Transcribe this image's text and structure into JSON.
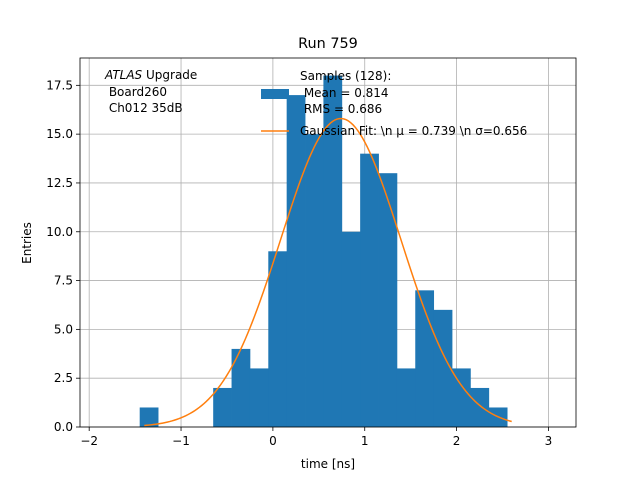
{
  "chart_data": {
    "type": "bar",
    "title": "Run 759",
    "xlabel": "time [ns]",
    "ylabel": "Entries",
    "xlim": [
      -2.1,
      3.3
    ],
    "ylim": [
      0,
      18.9
    ],
    "grid": true,
    "x_ticks": [
      -2,
      -1,
      0,
      1,
      2,
      3
    ],
    "y_ticks": [
      0.0,
      2.5,
      5.0,
      7.5,
      10.0,
      12.5,
      15.0,
      17.5
    ],
    "y_tick_labels": [
      "0.0",
      "2.5",
      "5.0",
      "7.5",
      "10.0",
      "12.5",
      "15.0",
      "17.5"
    ],
    "x_tick_labels": [
      "−2",
      "−1",
      "0",
      "1",
      "2",
      "3"
    ],
    "annotation": {
      "italic": "ATLAS",
      "line1_rest": " Upgrade",
      "line2": " Board260",
      "line3": " Ch012 35dB"
    },
    "histogram": {
      "name_lines": [
        "Samples (128):",
        " Mean = 0.814",
        " RMS = 0.686"
      ],
      "color": "#1f77b4",
      "bins": [
        {
          "x0": -1.45,
          "x1": -1.25,
          "count": 1
        },
        {
          "x0": -0.65,
          "x1": -0.45,
          "count": 2
        },
        {
          "x0": -0.45,
          "x1": -0.25,
          "count": 4
        },
        {
          "x0": -0.25,
          "x1": -0.05,
          "count": 3
        },
        {
          "x0": -0.05,
          "x1": 0.15,
          "count": 9
        },
        {
          "x0": 0.15,
          "x1": 0.35,
          "count": 17
        },
        {
          "x0": 0.35,
          "x1": 0.55,
          "count": 15
        },
        {
          "x0": 0.55,
          "x1": 0.75,
          "count": 18
        },
        {
          "x0": 0.75,
          "x1": 0.95,
          "count": 10
        },
        {
          "x0": 0.95,
          "x1": 1.15,
          "count": 14
        },
        {
          "x0": 1.15,
          "x1": 1.35,
          "count": 13
        },
        {
          "x0": 1.35,
          "x1": 1.55,
          "count": 3
        },
        {
          "x0": 1.55,
          "x1": 1.75,
          "count": 7
        },
        {
          "x0": 1.75,
          "x1": 1.95,
          "count": 6
        },
        {
          "x0": 1.95,
          "x1": 2.15,
          "count": 3
        },
        {
          "x0": 2.15,
          "x1": 2.35,
          "count": 2
        },
        {
          "x0": 2.35,
          "x1": 2.55,
          "count": 1
        }
      ]
    },
    "fit": {
      "name": "Gaussian Fit: \\n μ = 0.739 \\n σ=0.656",
      "color": "#ff7f0e",
      "mu": 0.739,
      "sigma": 0.656,
      "amplitude": 15.8,
      "x_range": [
        -1.4,
        2.6
      ]
    },
    "legend_position": "top-right"
  }
}
